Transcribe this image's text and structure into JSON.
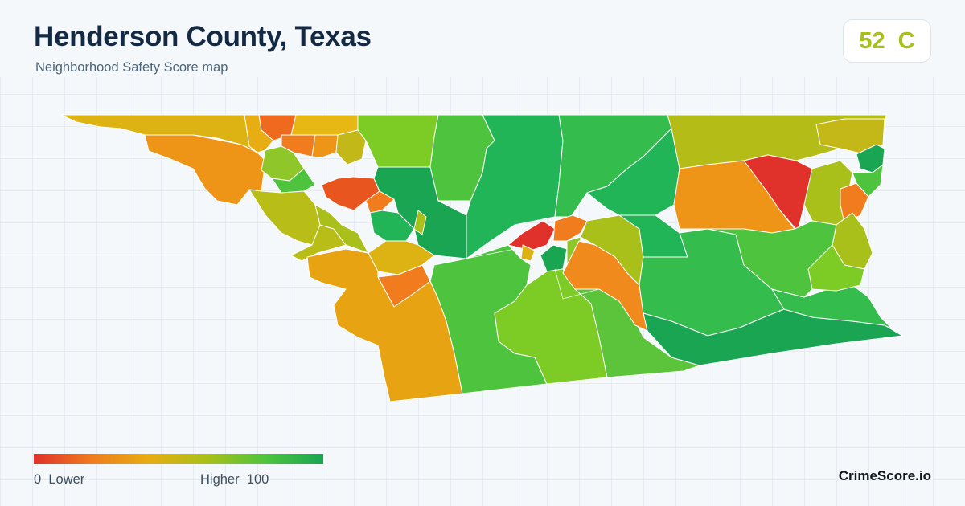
{
  "header": {
    "title": "Henderson County, Texas",
    "subtitle": "Neighborhood Safety Score map"
  },
  "score_badge": {
    "score": "52",
    "grade": "C",
    "color": "#a8c019"
  },
  "legend": {
    "min_value": "0",
    "min_label": "Lower",
    "max_label": "Higher",
    "max_value": "100",
    "colors": [
      "#e0312a",
      "#f07c1e",
      "#e7ad12",
      "#a8c019",
      "#4ec43e",
      "#1aa552"
    ]
  },
  "brand": "CrimeScore.io",
  "map": {
    "region": "Henderson County, Texas",
    "scale": "safety score 0-100, red = lower, green = higher"
  }
}
